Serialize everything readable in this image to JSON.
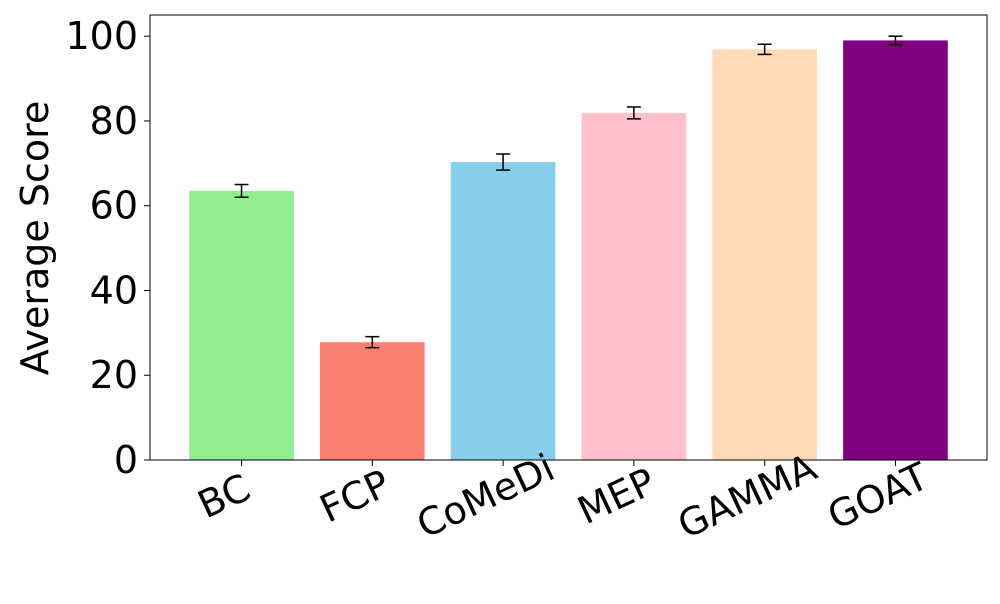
{
  "chart_data": {
    "type": "bar",
    "title": "",
    "xlabel": "",
    "ylabel": "Average Score",
    "categories": [
      "BC",
      "FCP",
      "CoMeDi",
      "MEP",
      "GAMMA",
      "GOAT"
    ],
    "values": [
      63.5,
      27.8,
      70.3,
      81.9,
      96.9,
      99.0
    ],
    "errors": [
      1.5,
      1.3,
      1.9,
      1.4,
      1.2,
      1.0
    ],
    "colors": [
      "#90ee90",
      "#fa8072",
      "#87ceeb",
      "#ffc0cb",
      "#ffdab9",
      "#800080"
    ],
    "ylim": [
      0,
      105
    ],
    "yticks": [
      0,
      20,
      40,
      60,
      80,
      100
    ],
    "grid": false,
    "legend": "none"
  }
}
